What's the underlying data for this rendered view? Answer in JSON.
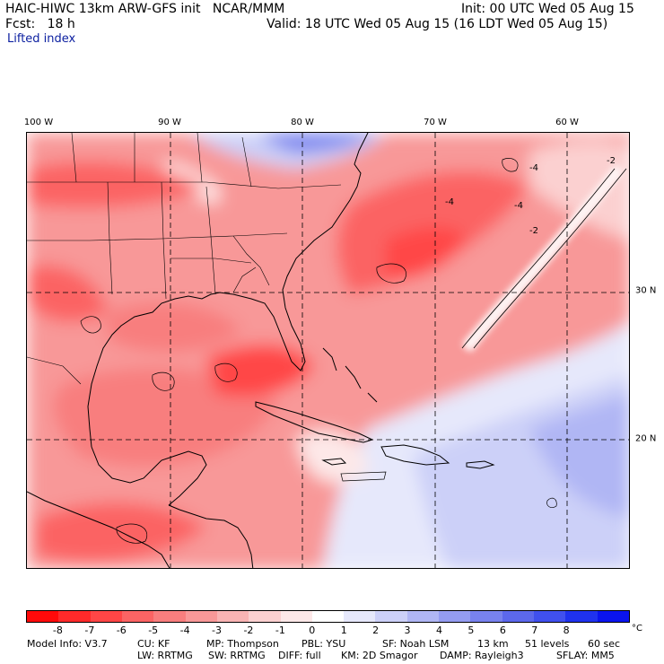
{
  "header": {
    "line1_left": "HAIC-HIWC 13km ARW-GFS init   NCAR/MMM",
    "line1_right": "Init: 00 UTC Wed 05 Aug 15",
    "line2_left": "Fcst:   18 h",
    "line2_right": "Valid: 18 UTC Wed 05 Aug 15 (16 LDT Wed 05 Aug 15)",
    "field_name": "Lifted index"
  },
  "map": {
    "lon_labels": [
      "100 W",
      "90 W",
      "80 W",
      "70 W",
      "60 W"
    ],
    "lat_labels": [
      "30 N",
      "20 N"
    ],
    "contour_labels": [
      "-4",
      "-4",
      "-2",
      "-2",
      "-4"
    ]
  },
  "colorbar": {
    "colors": [
      "#ff0a0a",
      "#ff2a2a",
      "#ff4646",
      "#fb6464",
      "#f87e7e",
      "#f89898",
      "#f9b4b4",
      "#fbd0d0",
      "#fde8e8",
      "#ffffff",
      "#e6e8fb",
      "#ccd0f8",
      "#b0b6f4",
      "#949cf1",
      "#7882ee",
      "#5c68ec",
      "#4050ee",
      "#1f32ee",
      "#0a14ee"
    ],
    "ticks": [
      "-8",
      "-7",
      "-6",
      "-5",
      "-4",
      "-3",
      "-2",
      "-1",
      "0",
      "1",
      "2",
      "3",
      "4",
      "5",
      "6",
      "7",
      "8"
    ],
    "unit": "°C"
  },
  "model_info": {
    "line1": [
      "Model Info: V3.7",
      "CU: KF",
      "MP: Thompson",
      "PBL: YSU",
      "SF: Noah LSM",
      "13 km",
      "51 levels",
      "60 sec"
    ],
    "line2": [
      "LW: RRTMG",
      "SW: RRTMG",
      "DIFF: full",
      "KM: 2D Smagor",
      "DAMP: Rayleigh3",
      "SFLAY: MM5"
    ]
  }
}
